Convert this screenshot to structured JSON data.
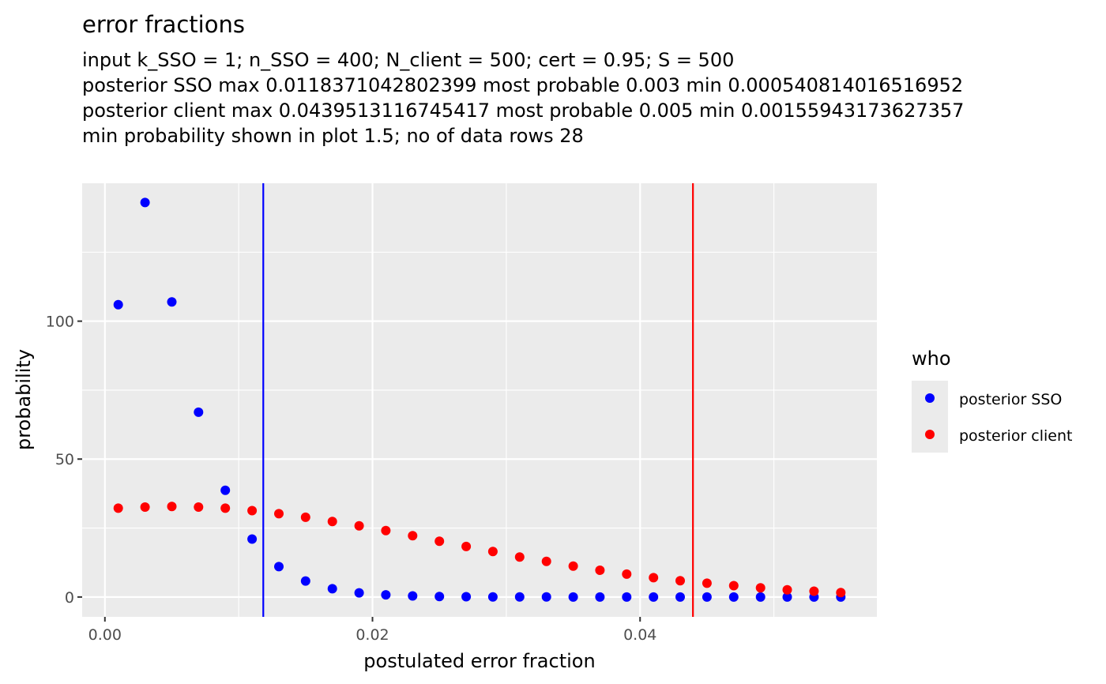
{
  "chart_data": {
    "type": "scatter",
    "title": "error fractions",
    "subtitle_lines": [
      "input k_SSO = 1; n_SSO = 400; N_client = 500; cert = 0.95; S = 500",
      "posterior SSO  max 0.0118371042802399   most probable 0.003 min 0.000540814016516952",
      "posterior client max 0.0439513116745417   most probable 0.005 min 0.00155943173627357",
      "min probability shown in plot 1.5; no of data rows 28"
    ],
    "xlabel": "postulated error fraction",
    "ylabel": "probability",
    "xlim": [
      -0.0017,
      0.0577
    ],
    "ylim": [
      -7.2,
      150
    ],
    "x_ticks": [
      {
        "value": 0.0,
        "label": "0.00"
      },
      {
        "value": 0.02,
        "label": "0.02"
      },
      {
        "value": 0.04,
        "label": "0.04"
      }
    ],
    "y_ticks": [
      {
        "value": 0,
        "label": "0"
      },
      {
        "value": 50,
        "label": "50"
      },
      {
        "value": 100,
        "label": "100"
      }
    ],
    "x_minor": [
      0.01,
      0.03,
      0.05
    ],
    "y_minor": [
      25,
      75,
      125
    ],
    "grid": true,
    "legend": {
      "title": "who",
      "placement": "right"
    },
    "vlines": [
      {
        "x": 0.0118371042802399,
        "color": "#0000ff"
      },
      {
        "x": 0.0439513116745417,
        "color": "#ff0000"
      }
    ],
    "series": [
      {
        "name": "posterior SSO",
        "color": "#0000ff",
        "x": [
          0.001,
          0.003,
          0.005,
          0.007,
          0.009,
          0.011,
          0.013,
          0.015,
          0.017,
          0.019,
          0.021,
          0.023,
          0.025,
          0.027,
          0.029,
          0.031,
          0.033,
          0.035,
          0.037,
          0.039,
          0.041,
          0.043,
          0.045,
          0.047,
          0.049,
          0.051,
          0.053,
          0.055
        ],
        "values": [
          106,
          143,
          107,
          67,
          38.7,
          21,
          11,
          5.8,
          3,
          1.5,
          0.8,
          0.4,
          0.2,
          0.1,
          0.05,
          0.02,
          0.01,
          0,
          0,
          0,
          0,
          0,
          0,
          0,
          0,
          0,
          0,
          0
        ]
      },
      {
        "name": "posterior client",
        "color": "#ff0000",
        "x": [
          0.001,
          0.003,
          0.005,
          0.007,
          0.009,
          0.011,
          0.013,
          0.015,
          0.017,
          0.019,
          0.021,
          0.023,
          0.025,
          0.027,
          0.029,
          0.031,
          0.033,
          0.035,
          0.037,
          0.039,
          0.041,
          0.043,
          0.045,
          0.047,
          0.049,
          0.051,
          0.053,
          0.055
        ],
        "values": [
          32.2,
          32.6,
          32.8,
          32.6,
          32.2,
          31.3,
          30.2,
          28.9,
          27.4,
          25.8,
          24.1,
          22.2,
          20.2,
          18.3,
          16.5,
          14.5,
          12.9,
          11.2,
          9.7,
          8.3,
          7.0,
          5.9,
          5.0,
          4.1,
          3.3,
          2.6,
          2.1,
          1.6
        ]
      }
    ]
  }
}
